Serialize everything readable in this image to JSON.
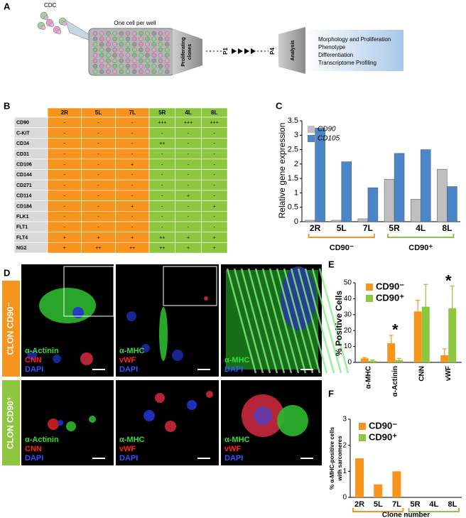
{
  "panel_labels": [
    "A",
    "B",
    "C",
    "D",
    "E",
    "F"
  ],
  "schematic": {
    "source": "CDC",
    "plate_label": "One cell per well",
    "step1": [
      "Proliferating",
      "clones"
    ],
    "passages": [
      "P1",
      "P4"
    ],
    "step2": "Analysis",
    "analyses": [
      "Morphology and Proliferation",
      "Phenotype",
      "Differentiation",
      "Transcriptome Profiling"
    ]
  },
  "table": {
    "columns": [
      "2R",
      "5L",
      "7L",
      "5R",
      "4L",
      "8L"
    ],
    "rows": [
      {
        "marker": "CD90",
        "cells": [
          "-",
          "-",
          "-",
          "+++",
          "+++",
          "+++"
        ]
      },
      {
        "marker": "C-KIT",
        "cells": [
          "-",
          "-",
          "-",
          "-",
          "-",
          "-"
        ]
      },
      {
        "marker": "CD34",
        "cells": [
          "-",
          "-",
          "-",
          "++",
          "-",
          "-"
        ]
      },
      {
        "marker": "CD31",
        "cells": [
          "-",
          "-",
          "-",
          "-",
          "-",
          "-"
        ]
      },
      {
        "marker": "CD106",
        "cells": [
          "-",
          "-",
          "+",
          "-",
          "-",
          "-"
        ]
      },
      {
        "marker": "CD144",
        "cells": [
          "-",
          "-",
          "-",
          "-",
          "-",
          "-"
        ]
      },
      {
        "marker": "CD271",
        "cells": [
          "-",
          "-",
          "-",
          "-",
          "-",
          "-"
        ]
      },
      {
        "marker": "CD114",
        "cells": [
          "-",
          "-",
          "-",
          "-",
          "+",
          "-"
        ]
      },
      {
        "marker": "CD184",
        "cells": [
          "-",
          "-",
          "+",
          "-",
          "-",
          "+"
        ]
      },
      {
        "marker": "FLK1",
        "cells": [
          "-",
          "-",
          "-",
          "-",
          "-",
          "-"
        ]
      },
      {
        "marker": "FLT1",
        "cells": [
          "-",
          "-",
          "-",
          "-",
          "-",
          "-"
        ]
      },
      {
        "marker": "FLT4",
        "cells": [
          "+",
          "+",
          "+",
          "++",
          "+",
          "+"
        ]
      },
      {
        "marker": "NG2",
        "cells": [
          "+",
          "++",
          "++",
          "++",
          "+",
          "+"
        ]
      }
    ]
  },
  "microscopy": {
    "groups": [
      {
        "label": "CLON CD90⁻",
        "color": "#f7941d"
      },
      {
        "label": "CLON CD90⁺",
        "color": "#8dc63f"
      }
    ],
    "images": [
      {
        "stains": [
          {
            "text": "α-Actinin",
            "color": "#33dd33"
          },
          {
            "text": "CNN",
            "color": "#ff2222"
          },
          {
            "text": "DAPI",
            "color": "#3355ff"
          }
        ]
      },
      {
        "stains": [
          {
            "text": "α-MHC",
            "color": "#33dd33"
          },
          {
            "text": "vWF",
            "color": "#ff2222"
          },
          {
            "text": "DAPI",
            "color": "#3355ff"
          }
        ]
      },
      {
        "stains": [
          {
            "text": "α-MHC",
            "color": "#33dd33"
          },
          {
            "text": "DAPI",
            "color": "#3355ff"
          }
        ]
      },
      {
        "stains": [
          {
            "text": "α-Actinin",
            "color": "#33dd33"
          },
          {
            "text": "CNN",
            "color": "#ff2222"
          },
          {
            "text": "DAPI",
            "color": "#3355ff"
          }
        ]
      },
      {
        "stains": [
          {
            "text": "α-MHC",
            "color": "#33dd33"
          },
          {
            "text": "vWF",
            "color": "#ff2222"
          },
          {
            "text": "DAPI",
            "color": "#3355ff"
          }
        ]
      },
      {
        "stains": [
          {
            "text": "α-MHC",
            "color": "#33dd33"
          },
          {
            "text": "vWF",
            "color": "#ff2222"
          },
          {
            "text": "DAPI",
            "color": "#3355ff"
          }
        ]
      }
    ]
  },
  "chart_data": [
    {
      "type": "bar",
      "ylabel": [
        "Relative gene expression"
      ],
      "categories": [
        "2R",
        "5L",
        "7L",
        "5R",
        "4L",
        "8L"
      ],
      "series": [
        {
          "name": "CD90",
          "color": "#bfbfbf",
          "values": [
            0.05,
            0.05,
            0.1,
            1.47,
            0.78,
            1.82
          ]
        },
        {
          "name": "CD105",
          "color": "#4a86c8",
          "values": [
            3.25,
            2.08,
            1.18,
            2.37,
            2.5,
            1.22
          ]
        }
      ],
      "ylim": [
        0,
        3.5
      ],
      "yticks": [
        0,
        0.5,
        1,
        1.5,
        2,
        2.5,
        3,
        3.5
      ],
      "groups": [
        {
          "label": "CD90⁻",
          "color": "#f7941d"
        },
        {
          "label": "CD90⁺",
          "color": "#8dc63f"
        }
      ]
    },
    {
      "type": "bar",
      "ylabel": [
        "%  Positive Cells"
      ],
      "categories": [
        "α-MHC",
        "α-Actinin",
        "CNN",
        "vWF"
      ],
      "series": [
        {
          "name": "CD90⁻",
          "color": "#f7941d",
          "values": [
            2.5,
            12,
            32,
            4.5
          ],
          "errors": [
            0.5,
            5,
            7,
            4
          ]
        },
        {
          "name": "CD90⁺",
          "color": "#8dc63f",
          "values": [
            1,
            1.5,
            35,
            34
          ],
          "errors": [
            0.5,
            1,
            14,
            14
          ]
        }
      ],
      "annotations": [
        null,
        "*",
        null,
        "*"
      ],
      "ylim": [
        0,
        50
      ],
      "yticks": [
        0,
        10,
        20,
        30,
        40,
        50
      ]
    },
    {
      "type": "bar",
      "ylabel": [
        "% α-MHC-positive cells",
        "with sarcomeres"
      ],
      "xlabel": "Clone number",
      "categories": [
        "2R",
        "5L",
        "7L",
        "5R",
        "4L",
        "8L"
      ],
      "series": [
        {
          "name": "CD90⁻",
          "color": "#f7941d",
          "values": [
            1.5,
            0.5,
            1.0,
            null,
            null,
            null
          ]
        },
        {
          "name": "CD90⁺",
          "color": "#8dc63f",
          "values": [
            null,
            null,
            null,
            0,
            0,
            0
          ]
        }
      ],
      "ylim": [
        0,
        3
      ],
      "yticks": [
        0,
        1,
        2,
        3
      ],
      "groups": [
        {
          "color": "#f7941d"
        },
        {
          "color": "#8dc63f"
        }
      ]
    }
  ]
}
